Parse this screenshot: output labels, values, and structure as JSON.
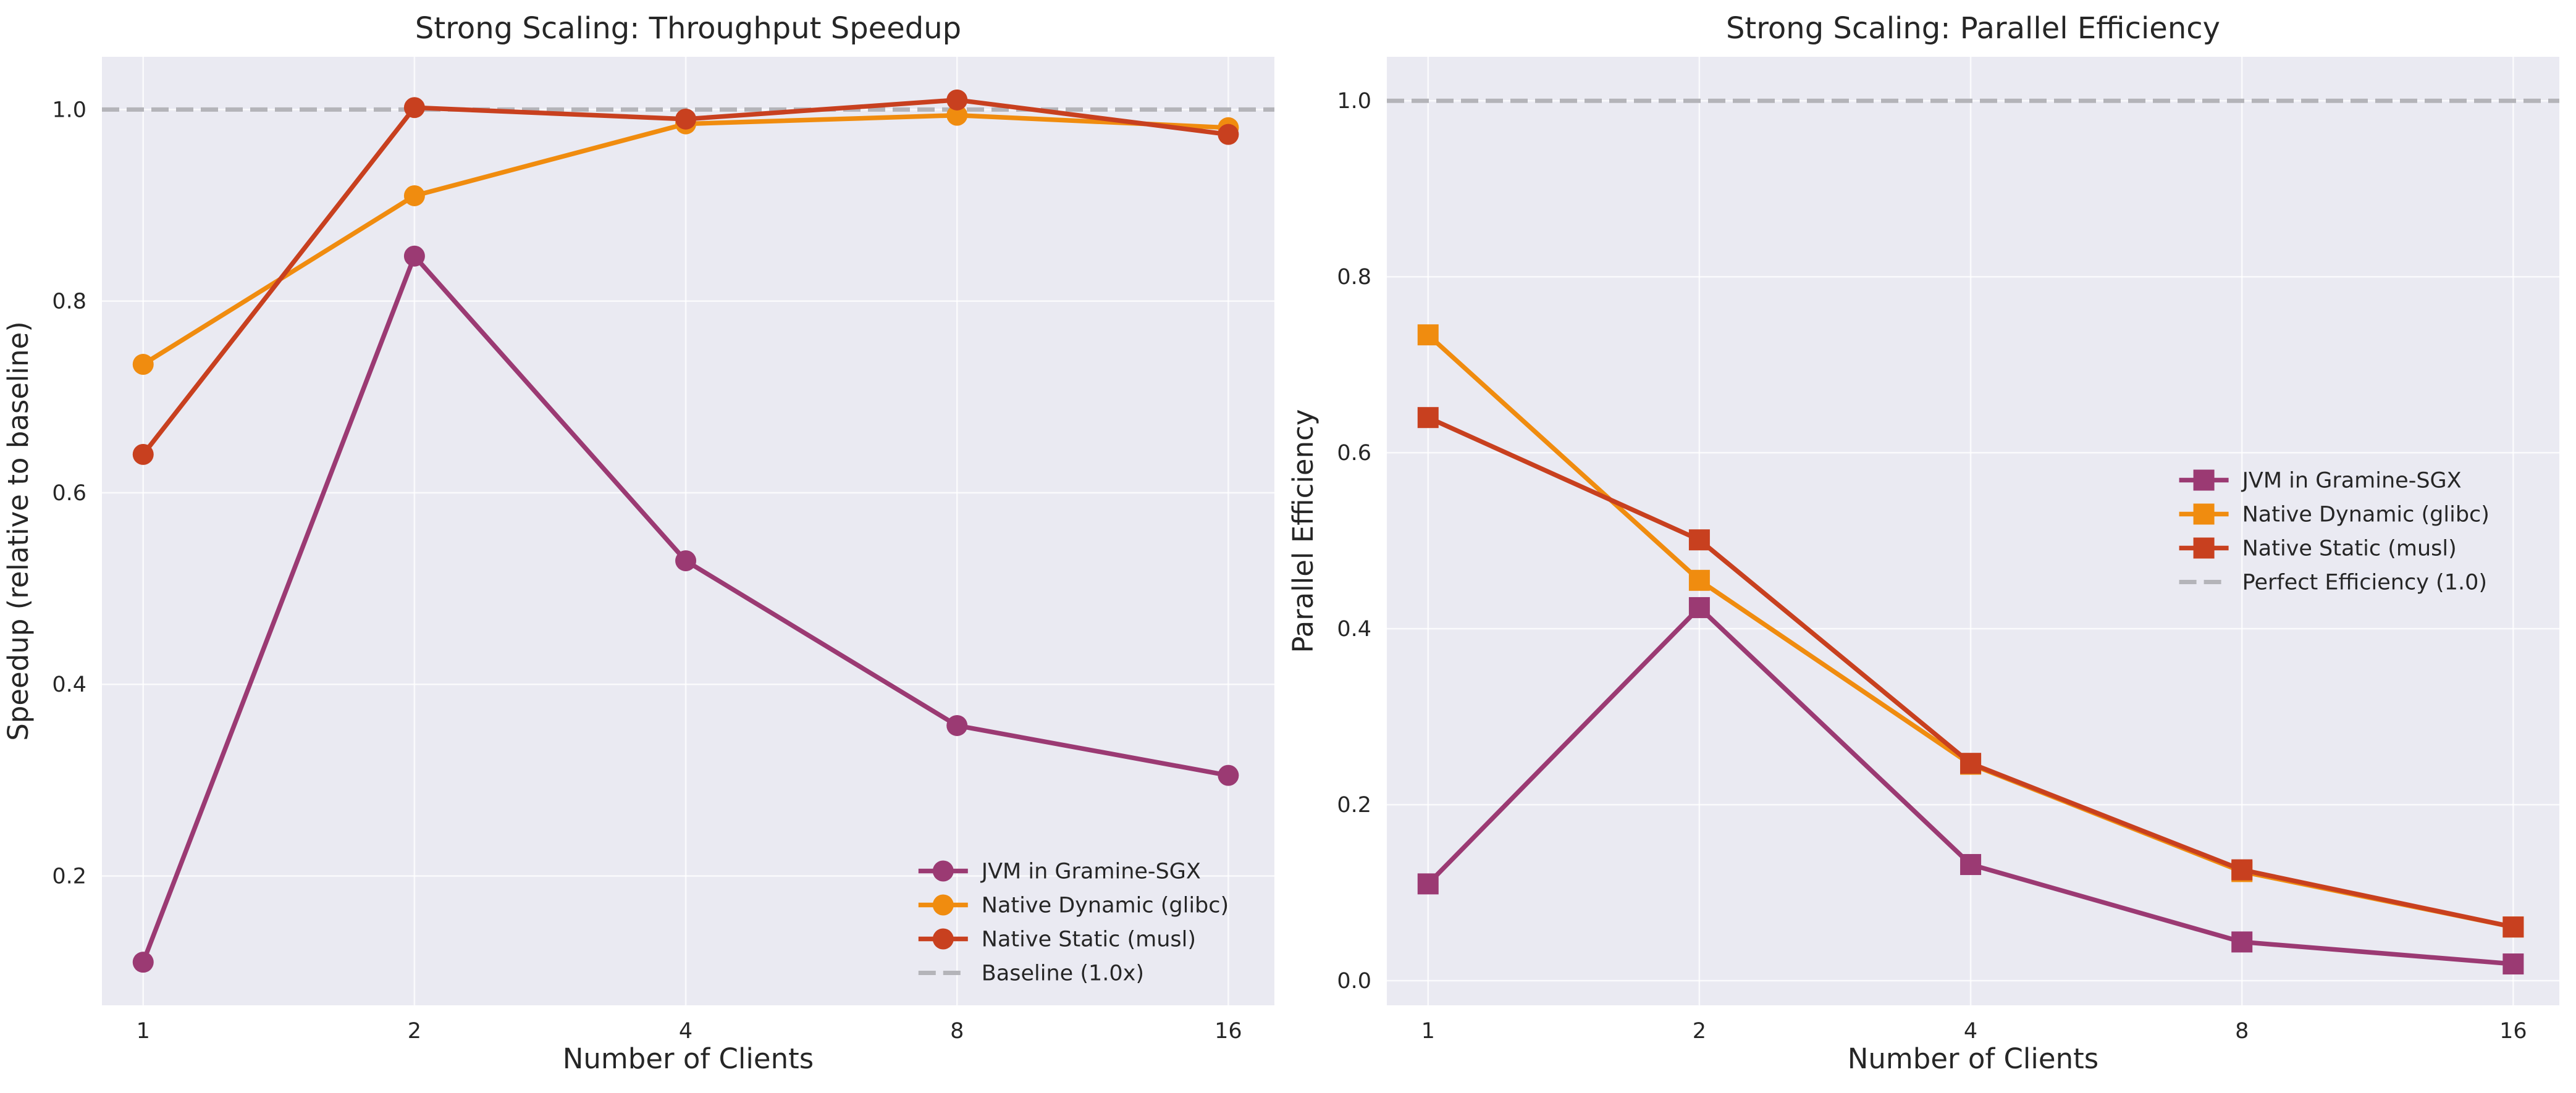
{
  "chart_data": [
    {
      "type": "line",
      "title": "Strong Scaling: Throughput Speedup",
      "xlabel": "Number of Clients",
      "ylabel": "Speedup (relative to baseline)",
      "x_scale": "log2",
      "x": [
        1,
        2,
        4,
        8,
        16
      ],
      "x_tick_labels": [
        "1",
        "2",
        "4",
        "8",
        "16"
      ],
      "xlim": [
        0.9,
        18
      ],
      "ylim": [
        0.065,
        1.055
      ],
      "y_ticks": [
        0.2,
        0.4,
        0.6,
        0.8,
        1.0
      ],
      "y_tick_labels": [
        "0.2",
        "0.4",
        "0.6",
        "0.8",
        "1.0"
      ],
      "grid": true,
      "legend_position": "lower-right",
      "marker": "circle",
      "series": [
        {
          "name": "JVM in Gramine-SGX",
          "color": "#9b3a73",
          "values": [
            0.11,
            0.847,
            0.529,
            0.357,
            0.305
          ]
        },
        {
          "name": "Native Dynamic (glibc)",
          "color": "#f08c0f",
          "values": [
            0.734,
            0.91,
            0.985,
            0.994,
            0.981
          ]
        },
        {
          "name": "Native Static (musl)",
          "color": "#c8401f",
          "values": [
            0.64,
            1.002,
            0.99,
            1.01,
            0.974
          ]
        }
      ],
      "reference_line": {
        "name": "Baseline (1.0x)",
        "value": 1.0,
        "color": "#b4b4b9"
      }
    },
    {
      "type": "line",
      "title": "Strong Scaling: Parallel Efficiency",
      "xlabel": "Number of Clients",
      "ylabel": "Parallel Efficiency",
      "x_scale": "log2",
      "x": [
        1,
        2,
        4,
        8,
        16
      ],
      "x_tick_labels": [
        "1",
        "2",
        "4",
        "8",
        "16"
      ],
      "xlim": [
        0.9,
        18
      ],
      "ylim": [
        -0.028,
        1.05
      ],
      "y_ticks": [
        0.0,
        0.2,
        0.4,
        0.6,
        0.8,
        1.0
      ],
      "y_tick_labels": [
        "0.0",
        "0.2",
        "0.4",
        "0.6",
        "0.8",
        "1.0"
      ],
      "grid": true,
      "legend_position": "center-right",
      "marker": "square",
      "series": [
        {
          "name": "JVM in Gramine-SGX",
          "color": "#9b3a73",
          "values": [
            0.11,
            0.424,
            0.132,
            0.044,
            0.019
          ]
        },
        {
          "name": "Native Dynamic (glibc)",
          "color": "#f08c0f",
          "values": [
            0.734,
            0.455,
            0.246,
            0.124,
            0.061
          ]
        },
        {
          "name": "Native Static (musl)",
          "color": "#c8401f",
          "values": [
            0.64,
            0.501,
            0.247,
            0.126,
            0.061
          ]
        }
      ],
      "reference_line": {
        "name": "Perfect Efficiency (1.0)",
        "value": 1.0,
        "color": "#b4b4b9"
      }
    }
  ]
}
